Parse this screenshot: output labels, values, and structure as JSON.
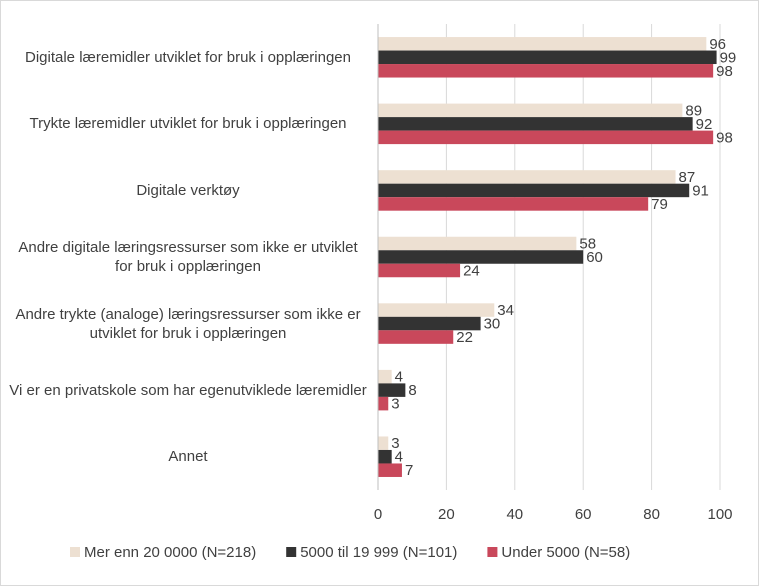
{
  "chart_data": {
    "type": "bar",
    "orientation": "horizontal",
    "categories": [
      "Digitale læremidler utviklet for bruk i opplæringen",
      "Trykte læremidler utviklet for bruk i opplæringen",
      "Digitale verktøy",
      "Andre digitale læringsressurser som ikke er utviklet for bruk i opplæringen",
      "Andre trykte (analoge) læringsressurser som ikke er utviklet for bruk i opplæringen",
      "Vi er en privatskole som har egenutviklede læremidler",
      "Annet"
    ],
    "series": [
      {
        "name": "Mer enn 20 0000 (N=218)",
        "color": "#ede0d2",
        "values": [
          96,
          89,
          87,
          58,
          34,
          4,
          3
        ]
      },
      {
        "name": "5000 til 19 999 (N=101)",
        "color": "#333333",
        "values": [
          99,
          92,
          91,
          60,
          30,
          8,
          4
        ]
      },
      {
        "name": "Under 5000 (N=58)",
        "color": "#c9485b",
        "values": [
          98,
          98,
          79,
          24,
          22,
          3,
          7
        ]
      }
    ],
    "xlim": [
      0,
      100
    ],
    "xticks": [
      0,
      20,
      40,
      60,
      80,
      100
    ],
    "grid": true,
    "legend": "bottom"
  }
}
